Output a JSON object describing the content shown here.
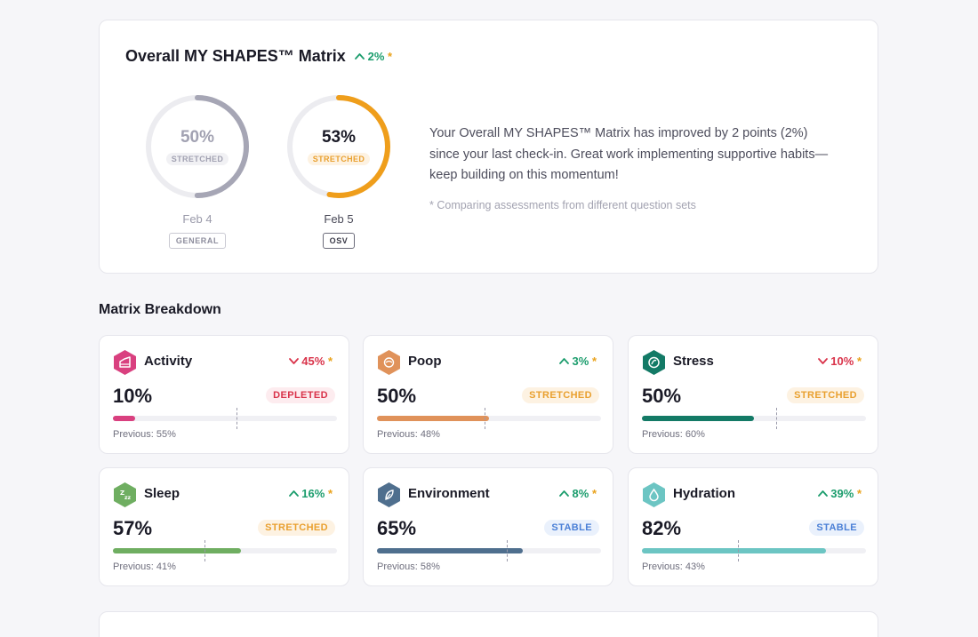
{
  "overall": {
    "title": "Overall MY SHAPES™ Matrix",
    "change_text": "2%",
    "change_direction": "up",
    "previous": {
      "percent": 50,
      "percent_label": "50%",
      "status": "STRETCHED",
      "date": "Feb 4",
      "tag": "GENERAL",
      "ring_color": "#a6a6b5"
    },
    "current": {
      "percent": 53,
      "percent_label": "53%",
      "status": "STRETCHED",
      "date": "Feb 5",
      "tag": "OSV",
      "ring_color": "#ef9e1b"
    },
    "description": "Your Overall MY SHAPES™ Matrix has improved by 2 points (2%) since your last check-in. Great work implementing supportive habits—keep building on this momentum!",
    "note": "* Comparing assessments from different question sets"
  },
  "breakdown": {
    "title": "Matrix Breakdown",
    "metrics": [
      {
        "name": "Activity",
        "icon": "activity-icon",
        "color": "#d9407f",
        "direction": "down",
        "change": "45%",
        "value_label": "10%",
        "value": 10,
        "previous_value": 55,
        "status": "DEPLETED",
        "status_type": "depleted",
        "previous_label": "Previous: 55%"
      },
      {
        "name": "Poop",
        "icon": "poop-icon",
        "color": "#e0925a",
        "direction": "up",
        "change": "3%",
        "value_label": "50%",
        "value": 50,
        "previous_value": 48,
        "status": "STRETCHED",
        "status_type": "stretched",
        "previous_label": "Previous: 48%"
      },
      {
        "name": "Stress",
        "icon": "stress-icon",
        "color": "#137a66",
        "direction": "down",
        "change": "10%",
        "value_label": "50%",
        "value": 50,
        "previous_value": 60,
        "status": "STRETCHED",
        "status_type": "stretched",
        "previous_label": "Previous: 60%"
      },
      {
        "name": "Sleep",
        "icon": "sleep-icon",
        "color": "#6fae61",
        "direction": "up",
        "change": "16%",
        "value_label": "57%",
        "value": 57,
        "previous_value": 41,
        "status": "STRETCHED",
        "status_type": "stretched",
        "previous_label": "Previous: 41%"
      },
      {
        "name": "Environment",
        "icon": "environment-icon",
        "color": "#4f6f8e",
        "direction": "up",
        "change": "8%",
        "value_label": "65%",
        "value": 65,
        "previous_value": 58,
        "status": "STABLE",
        "status_type": "stable",
        "previous_label": "Previous: 58%"
      },
      {
        "name": "Hydration",
        "icon": "hydration-icon",
        "color": "#6cc5c3",
        "direction": "up",
        "change": "39%",
        "value_label": "82%",
        "value": 82,
        "previous_value": 43,
        "status": "STABLE",
        "status_type": "stable",
        "previous_label": "Previous: 43%"
      }
    ]
  }
}
